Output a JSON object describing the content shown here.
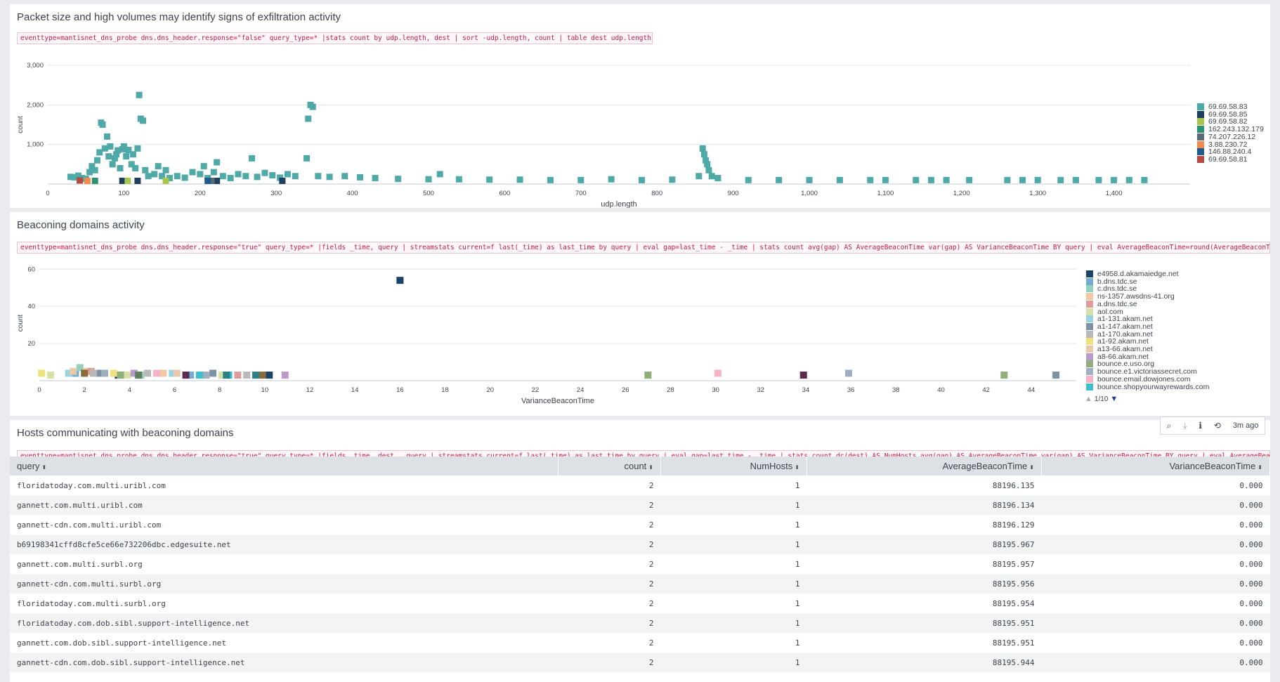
{
  "panels": {
    "p1": {
      "title": "Packet size and high volumes may identify signs of exfiltration activity",
      "query": "eventtype=mantisnet_dns_probe dns.dns_header.response=\"false\" query_type=* |stats count by udp.length, dest | sort -udp.length, count | table dest udp.length count"
    },
    "p2": {
      "title": "Beaconing domains activity",
      "query": "eventtype=mantisnet_dns_probe dns.dns_header.response=\"true\" query_type=* |fields _time, query | streamstats current=f last(_time) as last_time by query | eval gap=last_time - _time | stats count avg(gap) AS AverageBeaconTime var(gap) AS VarianceBeaconTime BY query | eval AverageBeaconTime=round(AverageBeaconTime,3), VarianceBeac"
    },
    "p3": {
      "title": "Hosts communicating with beaconing domains",
      "query": "eventtype=mantisnet_dns_probe dns.dns_header.response=\"true\" query_type=* |fields _time, dest , query | streamstats current=f last(_time) as last_time by query | eval gap=last_time - _time | stats count dc(dest) AS NumHosts avg(gap) AS AverageBeaconTime var(gap) AS VarianceBeaconTime BY query | eval AverageBeaconTime=round(Averag"
    }
  },
  "chart_data": [
    {
      "type": "scatter",
      "xlabel": "udp.length",
      "ylabel": "count",
      "xlim": [
        0,
        1500
      ],
      "ylim": [
        0,
        3000
      ],
      "xticks": [
        "0",
        "100",
        "200",
        "300",
        "400",
        "500",
        "600",
        "700",
        "800",
        "900",
        "1,000",
        "1,100",
        "1,200",
        "1,300",
        "1,400"
      ],
      "yticks": [
        "1,000",
        "2,000",
        "3,000"
      ],
      "grid": true,
      "legend_position": "right",
      "series": [
        {
          "name": "69.69.58.83",
          "color": "#4fa9a6",
          "points": [
            [
              30,
              180
            ],
            [
              35,
              170
            ],
            [
              40,
              210
            ],
            [
              45,
              150
            ],
            [
              50,
              130
            ],
            [
              55,
              300
            ],
            [
              58,
              450
            ],
            [
              62,
              350
            ],
            [
              65,
              600
            ],
            [
              68,
              800
            ],
            [
              70,
              1550
            ],
            [
              72,
              1500
            ],
            [
              75,
              900
            ],
            [
              78,
              1200
            ],
            [
              80,
              700
            ],
            [
              82,
              950
            ],
            [
              85,
              500
            ],
            [
              88,
              650
            ],
            [
              90,
              750
            ],
            [
              92,
              850
            ],
            [
              95,
              400
            ],
            [
              98,
              880
            ],
            [
              100,
              950
            ],
            [
              103,
              700
            ],
            [
              106,
              860
            ],
            [
              110,
              500
            ],
            [
              112,
              750
            ],
            [
              115,
              400
            ],
            [
              118,
              900
            ],
            [
              120,
              2250
            ],
            [
              122,
              1650
            ],
            [
              125,
              1600
            ],
            [
              128,
              350
            ],
            [
              132,
              200
            ],
            [
              140,
              250
            ],
            [
              145,
              450
            ],
            [
              150,
              200
            ],
            [
              155,
              350
            ],
            [
              160,
              150
            ],
            [
              170,
              200
            ],
            [
              180,
              160
            ],
            [
              190,
              300
            ],
            [
              200,
              250
            ],
            [
              205,
              450
            ],
            [
              210,
              150
            ],
            [
              218,
              300
            ],
            [
              222,
              550
            ],
            [
              230,
              200
            ],
            [
              240,
              150
            ],
            [
              250,
              250
            ],
            [
              260,
              200
            ],
            [
              268,
              650
            ],
            [
              275,
              180
            ],
            [
              285,
              280
            ],
            [
              295,
              220
            ],
            [
              305,
              160
            ],
            [
              315,
              250
            ],
            [
              325,
              200
            ],
            [
              340,
              650
            ],
            [
              345,
              2000
            ],
            [
              348,
              1950
            ],
            [
              342,
              1650
            ],
            [
              355,
              200
            ],
            [
              370,
              180
            ],
            [
              390,
              200
            ],
            [
              410,
              170
            ],
            [
              430,
              150
            ],
            [
              460,
              130
            ],
            [
              500,
              120
            ],
            [
              515,
              250
            ],
            [
              540,
              120
            ],
            [
              580,
              110
            ],
            [
              620,
              110
            ],
            [
              660,
              100
            ],
            [
              700,
              100
            ],
            [
              740,
              120
            ],
            [
              780,
              100
            ],
            [
              820,
              110
            ],
            [
              855,
              200
            ],
            [
              860,
              900
            ],
            [
              862,
              750
            ],
            [
              864,
              600
            ],
            [
              866,
              500
            ],
            [
              868,
              350
            ],
            [
              872,
              200
            ],
            [
              880,
              150
            ],
            [
              920,
              100
            ],
            [
              960,
              100
            ],
            [
              1000,
              100
            ],
            [
              1040,
              100
            ],
            [
              1080,
              100
            ],
            [
              1100,
              100
            ],
            [
              1140,
              100
            ],
            [
              1160,
              100
            ],
            [
              1180,
              100
            ],
            [
              1210,
              100
            ],
            [
              1260,
              100
            ],
            [
              1280,
              100
            ],
            [
              1300,
              100
            ],
            [
              1330,
              100
            ],
            [
              1350,
              100
            ],
            [
              1380,
              100
            ],
            [
              1400,
              100
            ],
            [
              1420,
              100
            ],
            [
              1440,
              100
            ]
          ]
        },
        {
          "name": "69.69.58.85",
          "color": "#1e3f60",
          "points": [
            [
              98,
              80
            ],
            [
              118,
              80
            ],
            [
              222,
              80
            ],
            [
              308,
              80
            ]
          ]
        },
        {
          "name": "69.69.58.82",
          "color": "#a6c64e",
          "points": [
            [
              105,
              80
            ],
            [
              155,
              80
            ]
          ]
        },
        {
          "name": "162.243.132.179",
          "color": "#2d9171",
          "points": [
            [
              62,
              80
            ]
          ]
        },
        {
          "name": "74.207.226.12",
          "color": "#5a6a7a",
          "points": [
            [
              215,
              80
            ]
          ]
        },
        {
          "name": "3.88.230.72",
          "color": "#f3894a",
          "points": [
            [
              52,
              80
            ]
          ]
        },
        {
          "name": "146.88.240.4",
          "color": "#1e5c8e",
          "points": [
            [
              210,
              80
            ]
          ]
        },
        {
          "name": "69.69.58.81",
          "color": "#b54b43",
          "points": [
            [
              42,
              90
            ]
          ]
        }
      ]
    },
    {
      "type": "scatter",
      "xlabel": "VarianceBeaconTime",
      "ylabel": "count",
      "xlim": [
        0,
        46
      ],
      "ylim": [
        0,
        62
      ],
      "xticks": [
        "0",
        "2",
        "4",
        "6",
        "8",
        "10",
        "12",
        "14",
        "16",
        "18",
        "20",
        "22",
        "24",
        "26",
        "28",
        "30",
        "32",
        "34",
        "36",
        "38",
        "40",
        "42",
        "44"
      ],
      "yticks": [
        "20",
        "40",
        "60"
      ],
      "grid": true,
      "legend_position": "right",
      "legend_page": "1/10",
      "series": [
        {
          "name": "e4958.d.akamaiedge.net",
          "color": "#1b4368",
          "points": [
            [
              16,
              54
            ],
            [
              10.2,
              3
            ],
            [
              3.5,
              3
            ]
          ]
        },
        {
          "name": "b.dns.tdc.se",
          "color": "#73aed0",
          "points": [
            [
              1.6,
              4
            ],
            [
              6.7,
              3
            ]
          ]
        },
        {
          "name": "c.dns.tdc.se",
          "color": "#94cfc0",
          "points": [
            [
              1.8,
              7
            ],
            [
              4.5,
              3
            ]
          ]
        },
        {
          "name": "ns-1357.awsdns-41.org",
          "color": "#f2c9a2",
          "points": [
            [
              2.1,
              5
            ],
            [
              5.5,
              4
            ]
          ]
        },
        {
          "name": "a.dns.tdc.se",
          "color": "#df9b9a",
          "points": [
            [
              2.3,
              5
            ],
            [
              8.8,
              3
            ]
          ]
        },
        {
          "name": "aol.com",
          "color": "#d7e0a6",
          "points": [
            [
              0.5,
              3
            ],
            [
              3.9,
              3
            ],
            [
              8.1,
              3
            ]
          ]
        },
        {
          "name": "a1-131.akam.net",
          "color": "#97d3e0",
          "points": [
            [
              1.3,
              4
            ],
            [
              5.9,
              4
            ]
          ]
        },
        {
          "name": "a1-147.akam.net",
          "color": "#7c93a6",
          "points": [
            [
              2.7,
              4
            ],
            [
              7.7,
              4
            ],
            [
              45.1,
              3
            ]
          ]
        },
        {
          "name": "a1-170.akam.net",
          "color": "#b9b9b9",
          "points": [
            [
              2.4,
              4
            ],
            [
              4.8,
              4
            ],
            [
              9.2,
              3
            ]
          ]
        },
        {
          "name": "a1-92.akam.net",
          "color": "#f2df7d",
          "points": [
            [
              0.1,
              4
            ],
            [
              3.3,
              4
            ]
          ]
        },
        {
          "name": "a13-66.akam.net",
          "color": "#e8c9aa",
          "points": [
            [
              1.5,
              5
            ],
            [
              6.1,
              4
            ]
          ]
        },
        {
          "name": "a8-66.akam.net",
          "color": "#b89bc9",
          "points": [
            [
              4.2,
              4
            ],
            [
              10.9,
              3
            ]
          ]
        },
        {
          "name": "bounce.e.uso.org",
          "color": "#8fae7a",
          "points": [
            [
              3.6,
              3
            ],
            [
              27,
              3
            ],
            [
              42.8,
              3
            ]
          ]
        },
        {
          "name": "bounce.e1.victoriassecret.com",
          "color": "#9eb0be",
          "points": [
            [
              2.9,
              4
            ],
            [
              7.4,
              3
            ],
            [
              35.9,
              4
            ]
          ]
        },
        {
          "name": "bounce.email.dowjones.com",
          "color": "#f6b3c6",
          "points": [
            [
              5.2,
              4
            ],
            [
              30.1,
              4
            ]
          ]
        },
        {
          "name": "bounce.shopyourwayrewards.com",
          "color": "#3cbfca",
          "points": [
            [
              7.1,
              3
            ],
            [
              8.4,
              3
            ]
          ]
        },
        {
          "name": "",
          "color": "#5c2a4d",
          "points": [
            [
              6.5,
              3
            ],
            [
              33.9,
              3
            ]
          ]
        },
        {
          "name": "",
          "color": "#8a6a3b",
          "points": [
            [
              9.9,
              3
            ],
            [
              2.0,
              4
            ]
          ]
        },
        {
          "name": "",
          "color": "#5d7f5a",
          "points": [
            [
              4.4,
              3
            ]
          ]
        },
        {
          "name": "",
          "color": "#2b7f88",
          "points": [
            [
              8.3,
              3
            ],
            [
              9.6,
              3
            ]
          ]
        }
      ]
    }
  ],
  "legend2_more": "1/10",
  "toolbar": {
    "search_icon": "⌕",
    "download_icon": "⤓",
    "info_icon": "i",
    "refresh_icon": "⟲",
    "time_ago": "3m ago"
  },
  "table": {
    "columns": [
      "query",
      "count",
      "NumHosts",
      "AverageBeaconTime",
      "VarianceBeaconTime"
    ],
    "sort_icon": "⬍",
    "rows": [
      [
        "floridatoday.com.multi.uribl.com",
        "2",
        "1",
        "88196.135",
        "0.000"
      ],
      [
        "gannett.com.multi.uribl.com",
        "2",
        "1",
        "88196.134",
        "0.000"
      ],
      [
        "gannett-cdn.com.multi.uribl.com",
        "2",
        "1",
        "88196.129",
        "0.000"
      ],
      [
        "b69198341cffd8cfe5ce66e732206dbc.edgesuite.net",
        "2",
        "1",
        "88195.967",
        "0.000"
      ],
      [
        "gannett.com.multi.surbl.org",
        "2",
        "1",
        "88195.957",
        "0.000"
      ],
      [
        "gannett-cdn.com.multi.surbl.org",
        "2",
        "1",
        "88195.956",
        "0.000"
      ],
      [
        "floridatoday.com.multi.surbl.org",
        "2",
        "1",
        "88195.954",
        "0.000"
      ],
      [
        "floridatoday.com.dob.sibl.support-intelligence.net",
        "2",
        "1",
        "88195.951",
        "0.000"
      ],
      [
        "gannett.com.dob.sibl.support-intelligence.net",
        "2",
        "1",
        "88195.951",
        "0.000"
      ],
      [
        "gannett-cdn.com.dob.sibl.support-intelligence.net",
        "2",
        "1",
        "88195.944",
        "0.000"
      ]
    ]
  }
}
